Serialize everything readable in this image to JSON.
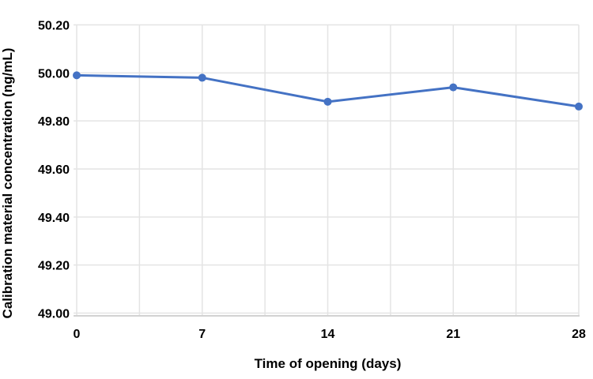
{
  "chart_data": {
    "type": "line",
    "title": "",
    "xlabel": "Time of opening (days)",
    "ylabel": "Calibration material concentration (ng/mL)",
    "x": [
      0,
      7,
      14,
      21,
      28
    ],
    "series": [
      {
        "name": "Calibration material concentration",
        "values": [
          49.99,
          49.98,
          49.88,
          49.94,
          49.86
        ],
        "color": "#4472C4",
        "marker": "circle",
        "marker_radius": 5,
        "line_width": 3
      }
    ],
    "xlim": [
      0,
      28
    ],
    "ylim": [
      49.0,
      50.2
    ],
    "xtick_labels": [
      "0",
      "7",
      "14",
      "21",
      "28"
    ],
    "xtick_values": [
      0,
      7,
      14,
      21,
      28
    ],
    "x_minor_grid_step": 3.5,
    "ytick_labels": [
      "50.20",
      "50.00",
      "49.80",
      "49.60",
      "49.40",
      "49.20",
      "49.00"
    ],
    "ytick_values": [
      50.2,
      50.0,
      49.8,
      49.6,
      49.4,
      49.2,
      49.0
    ],
    "grid": "on",
    "legend": "none",
    "colors": {
      "line": "#4472C4",
      "gridline": "#e4e4e4",
      "axis_line": "#d2d2d2",
      "text": "#000000",
      "background": "#ffffff"
    }
  }
}
